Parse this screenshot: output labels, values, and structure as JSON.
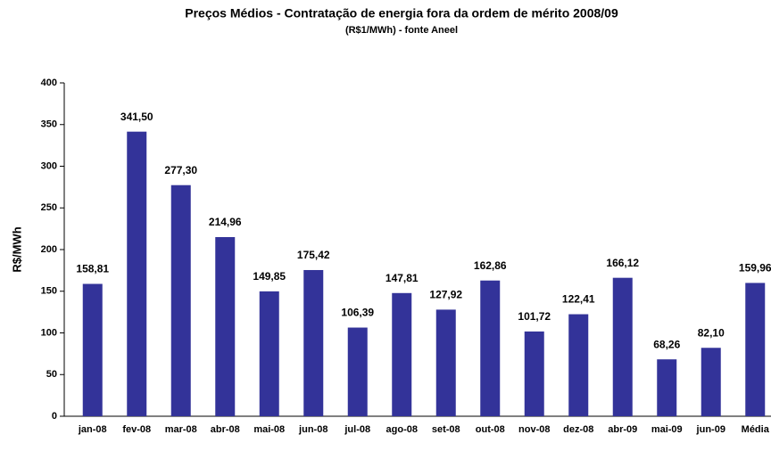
{
  "chart_data": {
    "type": "bar",
    "title": "Preços Médios - Contratação de energia fora da ordem de mérito 2008/09",
    "subtitle": "(R$1/MWh) - fonte Aneel",
    "y_label": "R$/MWh",
    "categories": [
      "jan-08",
      "fev-08",
      "mar-08",
      "abr-08",
      "mai-08",
      "jun-08",
      "jul-08",
      "ago-08",
      "set-08",
      "out-08",
      "nov-08",
      "dez-08",
      "abr-09",
      "mai-09",
      "jun-09",
      "Média"
    ],
    "values": [
      158.81,
      341.5,
      277.3,
      214.96,
      149.85,
      175.42,
      106.39,
      147.81,
      127.92,
      162.86,
      101.72,
      122.41,
      166.12,
      68.26,
      82.1,
      159.96
    ],
    "value_labels": [
      "158,81",
      "341,50",
      "277,30",
      "214,96",
      "149,85",
      "175,42",
      "106,39",
      "147,81",
      "127,92",
      "162,86",
      "101,72",
      "122,41",
      "166,12",
      "68,26",
      "82,10",
      "159,96"
    ],
    "color": "#333399",
    "ylim": [
      0,
      400
    ],
    "yticks": [
      0,
      50,
      100,
      150,
      200,
      250,
      300,
      350,
      400
    ],
    "grid": false
  }
}
